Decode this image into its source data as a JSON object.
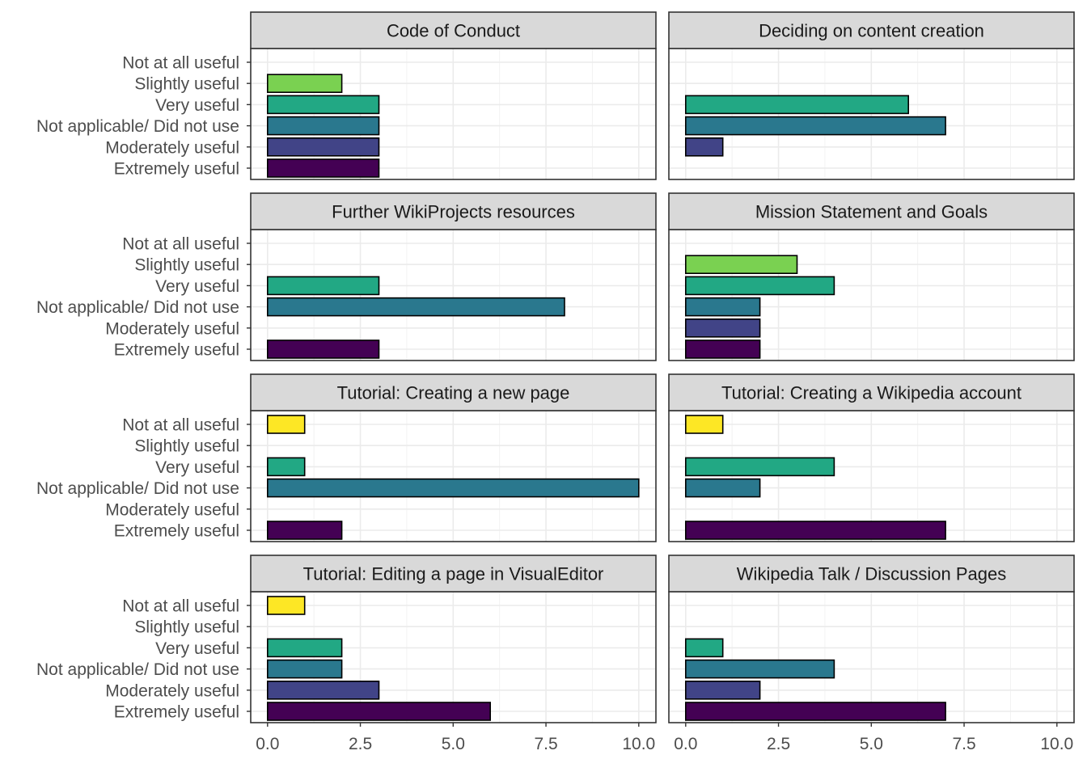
{
  "chart_data": {
    "type": "bar",
    "orientation": "horizontal",
    "layout": "facet-grid 4 rows x 2 columns",
    "categories": [
      "Not at all useful",
      "Slightly useful",
      "Very useful",
      "Not applicable/ Did not use",
      "Moderately useful",
      "Extremely useful"
    ],
    "category_colors": {
      "Not at all useful": "#FDE725",
      "Slightly useful": "#7AD151",
      "Very useful": "#22A884",
      "Not applicable/ Did not use": "#2A788E",
      "Moderately useful": "#414487",
      "Extremely useful": "#440154"
    },
    "xlim": [
      0,
      10.4
    ],
    "x_ticks": [
      "0.0",
      "2.5",
      "5.0",
      "7.5",
      "10.0"
    ],
    "x_tick_values": [
      0,
      2.5,
      5,
      7.5,
      10
    ],
    "grid": true,
    "legend": "none",
    "xlabel": "",
    "ylabel": "",
    "panels": [
      {
        "title": "Code of Conduct",
        "values": {
          "Slightly useful": 2,
          "Very useful": 3,
          "Not applicable/ Did not use": 3,
          "Moderately useful": 3,
          "Extremely useful": 3
        }
      },
      {
        "title": "Deciding on content creation",
        "values": {
          "Very useful": 6,
          "Not applicable/ Did not use": 7,
          "Moderately useful": 1
        }
      },
      {
        "title": "Further WikiProjects resources",
        "values": {
          "Very useful": 3,
          "Not applicable/ Did not use": 8,
          "Extremely useful": 3
        }
      },
      {
        "title": "Mission Statement and Goals",
        "values": {
          "Slightly useful": 3,
          "Very useful": 4,
          "Not applicable/ Did not use": 2,
          "Moderately useful": 2,
          "Extremely useful": 2
        }
      },
      {
        "title": "Tutorial: Creating a new page",
        "values": {
          "Not at all useful": 1,
          "Very useful": 1,
          "Not applicable/ Did not use": 10,
          "Extremely useful": 2
        }
      },
      {
        "title": "Tutorial: Creating a Wikipedia account",
        "values": {
          "Not at all useful": 1,
          "Very useful": 4,
          "Not applicable/ Did not use": 2,
          "Extremely useful": 7
        }
      },
      {
        "title": "Tutorial: Editing a page in VisualEditor",
        "values": {
          "Not at all useful": 1,
          "Very useful": 2,
          "Not applicable/ Did not use": 2,
          "Moderately useful": 3,
          "Extremely useful": 6
        }
      },
      {
        "title": "Wikipedia Talk / Discussion Pages",
        "values": {
          "Very useful": 1,
          "Not applicable/ Did not use": 4,
          "Moderately useful": 2,
          "Extremely useful": 7
        }
      }
    ]
  }
}
